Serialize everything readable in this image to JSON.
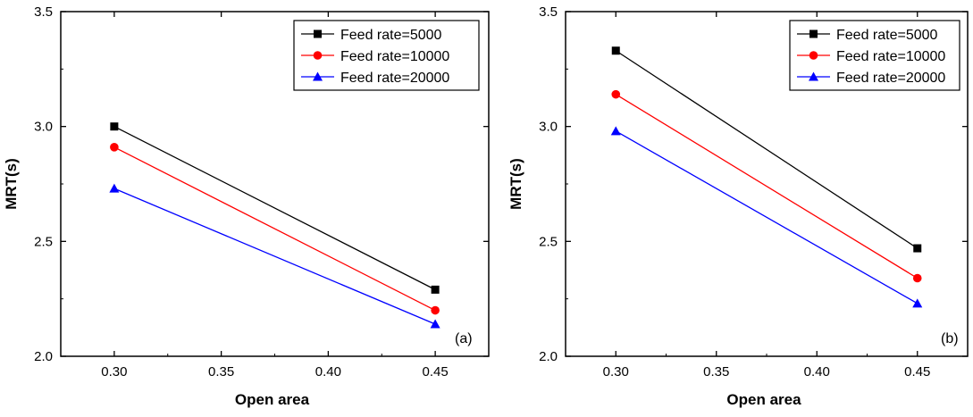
{
  "chart_data": [
    {
      "type": "line",
      "panel_label": "(a)",
      "xlabel": "Open area",
      "ylabel": "MRT(s)",
      "xlim": [
        0.275,
        0.475
      ],
      "ylim": [
        2.0,
        3.5
      ],
      "xticks": [
        "0.30",
        "0.35",
        "0.40",
        "0.45"
      ],
      "yticks": [
        "2.0",
        "2.5",
        "3.0",
        "3.5"
      ],
      "grid": false,
      "legend_position": "top-right",
      "x": [
        0.3,
        0.45
      ],
      "series": [
        {
          "name": "Feed rate=5000",
          "color": "#000000",
          "marker": "square",
          "values": [
            3.0,
            2.29
          ]
        },
        {
          "name": "Feed rate=10000",
          "color": "#ff0000",
          "marker": "circle",
          "values": [
            2.91,
            2.2
          ]
        },
        {
          "name": "Feed rate=20000",
          "color": "#0000ff",
          "marker": "triangle",
          "values": [
            2.73,
            2.14
          ]
        }
      ]
    },
    {
      "type": "line",
      "panel_label": "(b)",
      "xlabel": "Open area",
      "ylabel": "MRT(s)",
      "xlim": [
        0.275,
        0.475
      ],
      "ylim": [
        2.0,
        3.5
      ],
      "xticks": [
        "0.30",
        "0.35",
        "0.40",
        "0.45"
      ],
      "yticks": [
        "2.0",
        "2.5",
        "3.0",
        "3.5"
      ],
      "grid": false,
      "legend_position": "top-right",
      "x": [
        0.3,
        0.45
      ],
      "series": [
        {
          "name": "Feed rate=5000",
          "color": "#000000",
          "marker": "square",
          "values": [
            3.33,
            2.47
          ]
        },
        {
          "name": "Feed rate=10000",
          "color": "#ff0000",
          "marker": "circle",
          "values": [
            3.14,
            2.34
          ]
        },
        {
          "name": "Feed rate=20000",
          "color": "#0000ff",
          "marker": "triangle",
          "values": [
            2.98,
            2.23
          ]
        }
      ]
    }
  ]
}
